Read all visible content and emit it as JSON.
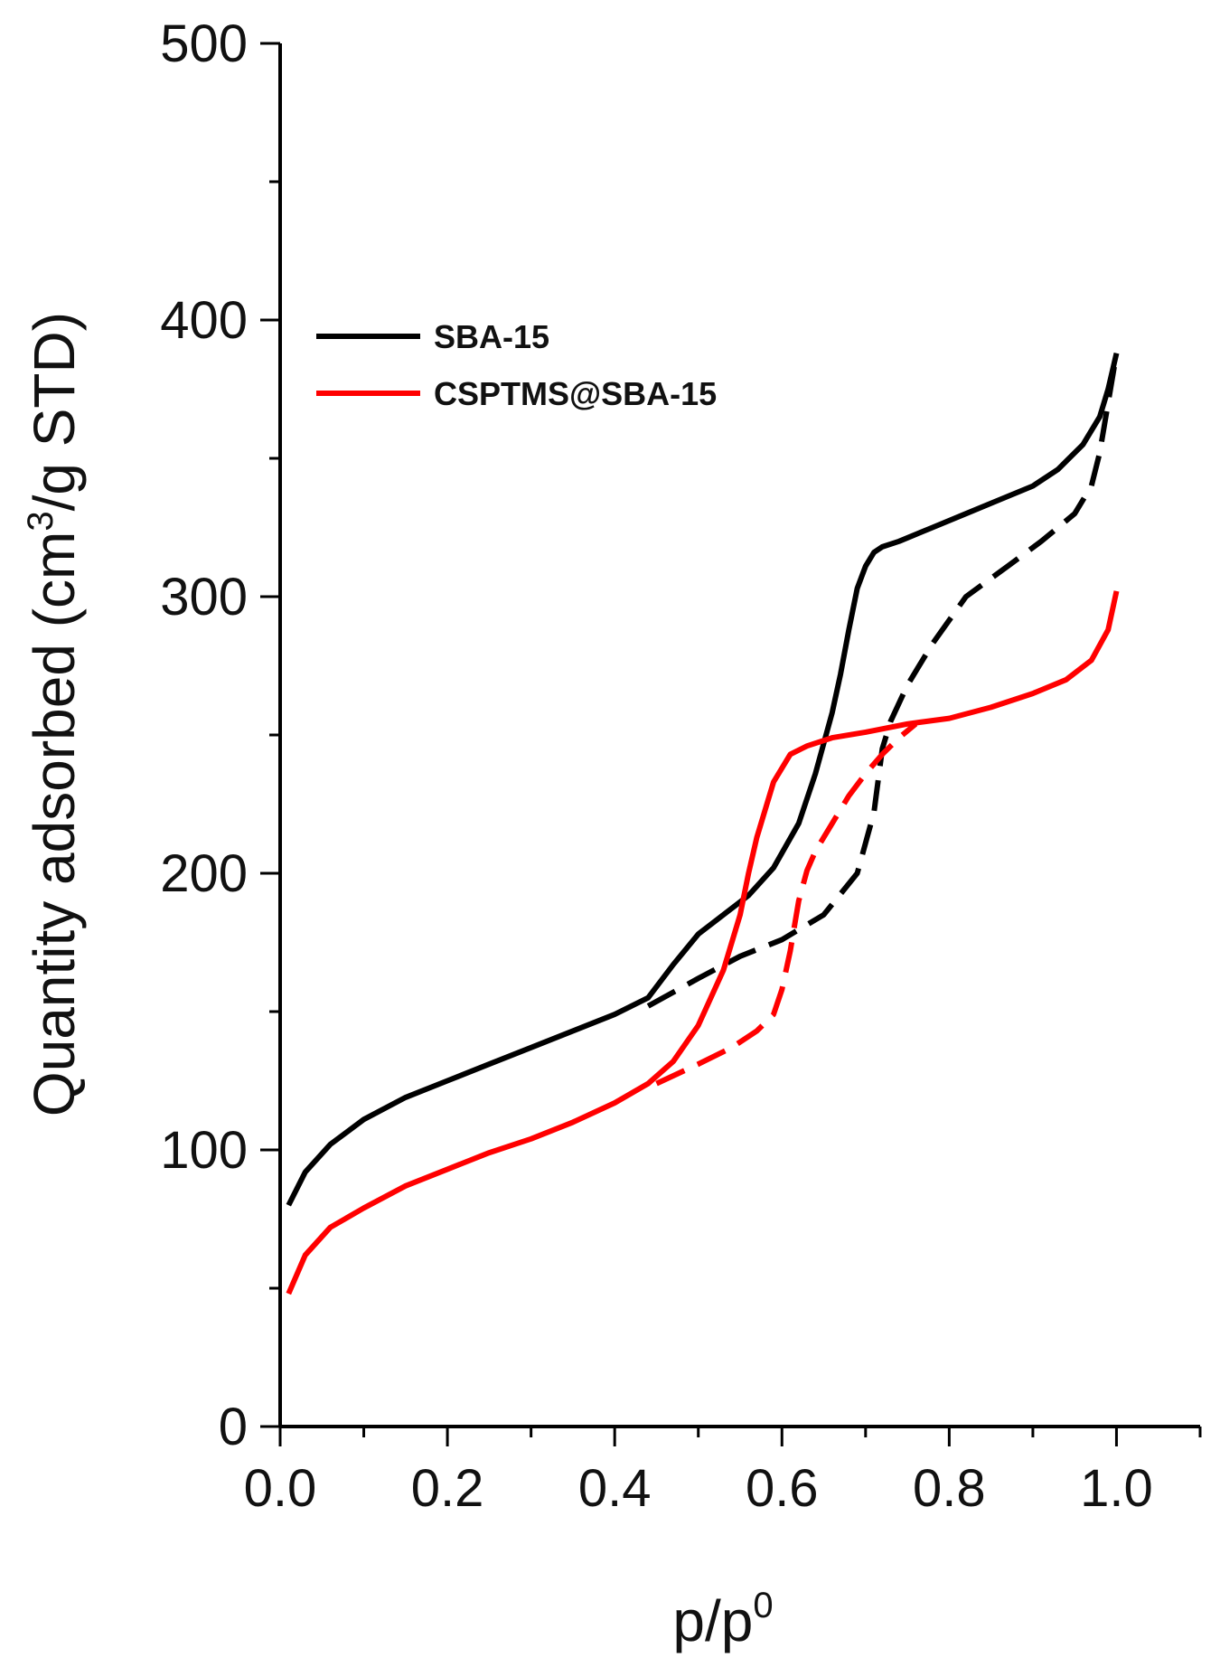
{
  "chart_data": {
    "type": "line",
    "title": "",
    "xlabel": "p/p",
    "xlabel_superscript": "0",
    "ylabel": "Quantity adsorbed (cm",
    "ylabel_superscript": "3",
    "ylabel_suffix": "/g STD)",
    "xlim": [
      0.0,
      1.1
    ],
    "ylim": [
      0,
      500
    ],
    "xticks": [
      "0.0",
      "0.2",
      "0.4",
      "0.6",
      "0.8",
      "1.0"
    ],
    "yticks": [
      "0",
      "100",
      "200",
      "300",
      "400",
      "500"
    ],
    "legend_position": "upper-left",
    "grid": false,
    "series": [
      {
        "name": "SBA-15",
        "branch": "adsorption",
        "color": "#000000",
        "linestyle": "solid",
        "show_in_legend": true,
        "x": [
          0.01,
          0.03,
          0.06,
          0.1,
          0.15,
          0.2,
          0.25,
          0.3,
          0.35,
          0.4,
          0.44,
          0.47,
          0.5,
          0.53,
          0.56,
          0.59,
          0.62,
          0.64,
          0.66,
          0.67,
          0.68,
          0.69,
          0.7,
          0.71,
          0.72,
          0.74,
          0.78,
          0.82,
          0.86,
          0.9,
          0.93,
          0.96,
          0.98,
          0.99,
          1.0
        ],
        "y": [
          80,
          92,
          102,
          111,
          119,
          125,
          131,
          137,
          143,
          149,
          155,
          167,
          178,
          185,
          192,
          202,
          218,
          236,
          258,
          272,
          288,
          303,
          311,
          316,
          318,
          320,
          325,
          330,
          335,
          340,
          346,
          355,
          365,
          375,
          388
        ]
      },
      {
        "name": "SBA-15",
        "branch": "desorption",
        "color": "#000000",
        "linestyle": "dashed",
        "show_in_legend": false,
        "x": [
          0.44,
          0.5,
          0.55,
          0.6,
          0.65,
          0.69,
          0.71,
          0.72,
          0.73,
          0.75,
          0.78,
          0.82,
          0.87,
          0.91,
          0.95,
          0.97,
          0.98,
          0.99,
          1.0
        ],
        "y": [
          152,
          162,
          170,
          176,
          185,
          200,
          222,
          245,
          255,
          268,
          283,
          300,
          311,
          320,
          330,
          340,
          352,
          370,
          388
        ]
      },
      {
        "name": "CSPTMS@SBA-15",
        "branch": "adsorption",
        "color": "#ff0000",
        "linestyle": "solid",
        "show_in_legend": true,
        "x": [
          0.01,
          0.03,
          0.06,
          0.1,
          0.15,
          0.2,
          0.25,
          0.3,
          0.35,
          0.4,
          0.44,
          0.47,
          0.5,
          0.53,
          0.55,
          0.56,
          0.57,
          0.59,
          0.61,
          0.63,
          0.66,
          0.7,
          0.75,
          0.8,
          0.85,
          0.9,
          0.94,
          0.97,
          0.99,
          1.0
        ],
        "y": [
          48,
          62,
          72,
          79,
          87,
          93,
          99,
          104,
          110,
          117,
          124,
          132,
          145,
          165,
          185,
          200,
          213,
          233,
          243,
          246,
          249,
          251,
          254,
          256,
          260,
          265,
          270,
          277,
          288,
          302
        ]
      },
      {
        "name": "CSPTMS@SBA-15",
        "branch": "desorption",
        "color": "#ff0000",
        "linestyle": "dashed",
        "show_in_legend": false,
        "x": [
          0.45,
          0.5,
          0.54,
          0.57,
          0.59,
          0.6,
          0.61,
          0.62,
          0.63,
          0.64,
          0.66,
          0.68,
          0.7,
          0.72,
          0.74,
          0.76
        ],
        "y": [
          124,
          131,
          137,
          143,
          149,
          158,
          172,
          190,
          201,
          208,
          218,
          228,
          236,
          243,
          249,
          254
        ]
      }
    ]
  }
}
